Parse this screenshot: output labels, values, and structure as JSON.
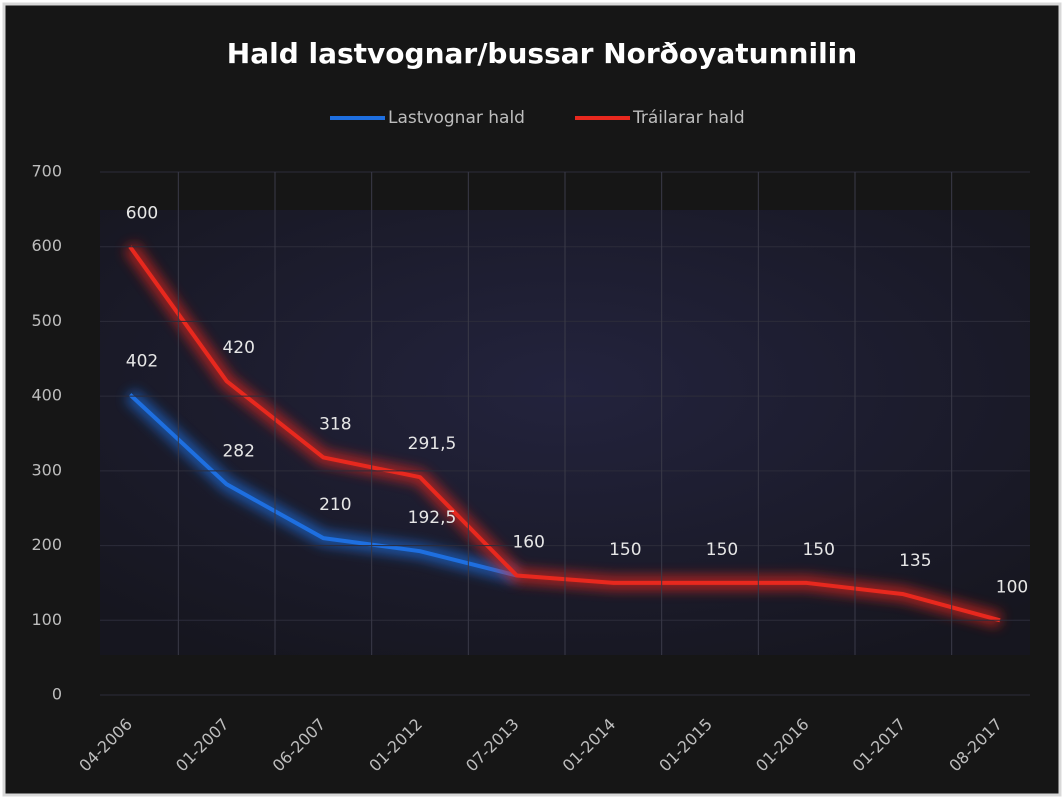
{
  "chart_data": {
    "type": "line",
    "title": "Hald lastvognar/bussar Norðoyatunnilin",
    "categories": [
      "04-2006",
      "01-2007",
      "06-2007",
      "01-2012",
      "07-2013",
      "01-2014",
      "01-2015",
      "01-2016",
      "01-2017",
      "08-2017"
    ],
    "series": [
      {
        "name": "Lastvognar hald",
        "color": "#1e6fe0",
        "values": [
          402,
          282,
          210,
          192.5,
          160,
          null,
          null,
          null,
          null,
          null
        ],
        "value_labels": [
          "402",
          "282",
          "210",
          "192,5",
          null,
          null,
          null,
          null,
          null,
          null
        ]
      },
      {
        "name": "Tráilarar hald",
        "color": "#e8281e",
        "values": [
          600,
          420,
          318,
          291.5,
          160,
          150,
          150,
          150,
          135,
          100
        ],
        "value_labels": [
          "600",
          "420",
          "318",
          "291,5",
          "160",
          "150",
          "150",
          "150",
          "135",
          "100"
        ]
      }
    ],
    "ylim": [
      0,
      700
    ],
    "yticks": [
      0,
      100,
      200,
      300,
      400,
      500,
      600,
      700
    ],
    "grid": true,
    "legend": "top"
  }
}
